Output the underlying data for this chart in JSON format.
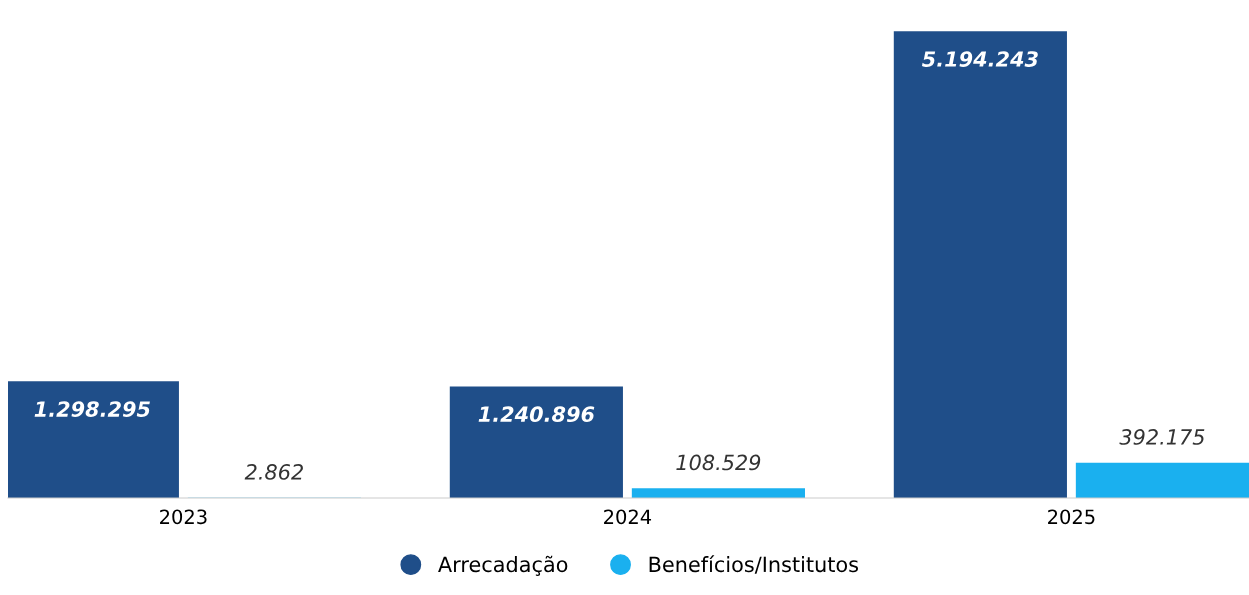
{
  "chart_data": {
    "type": "bar",
    "categories": [
      "2023",
      "2024",
      "2025"
    ],
    "series": [
      {
        "name": "Arrecadação",
        "color": "#1f4e89",
        "values": [
          1298295,
          1240896,
          5194243
        ],
        "value_labels": [
          "1.298.295",
          "1.240.896",
          "5.194.243"
        ]
      },
      {
        "name": "Benefícios/Institutos",
        "color": "#1ab0ef",
        "values": [
          2862,
          108529,
          392175
        ],
        "value_labels": [
          "2.862",
          "108.529",
          "392.175"
        ]
      }
    ],
    "legend": "bottom",
    "grid": false,
    "marker": "circle"
  }
}
